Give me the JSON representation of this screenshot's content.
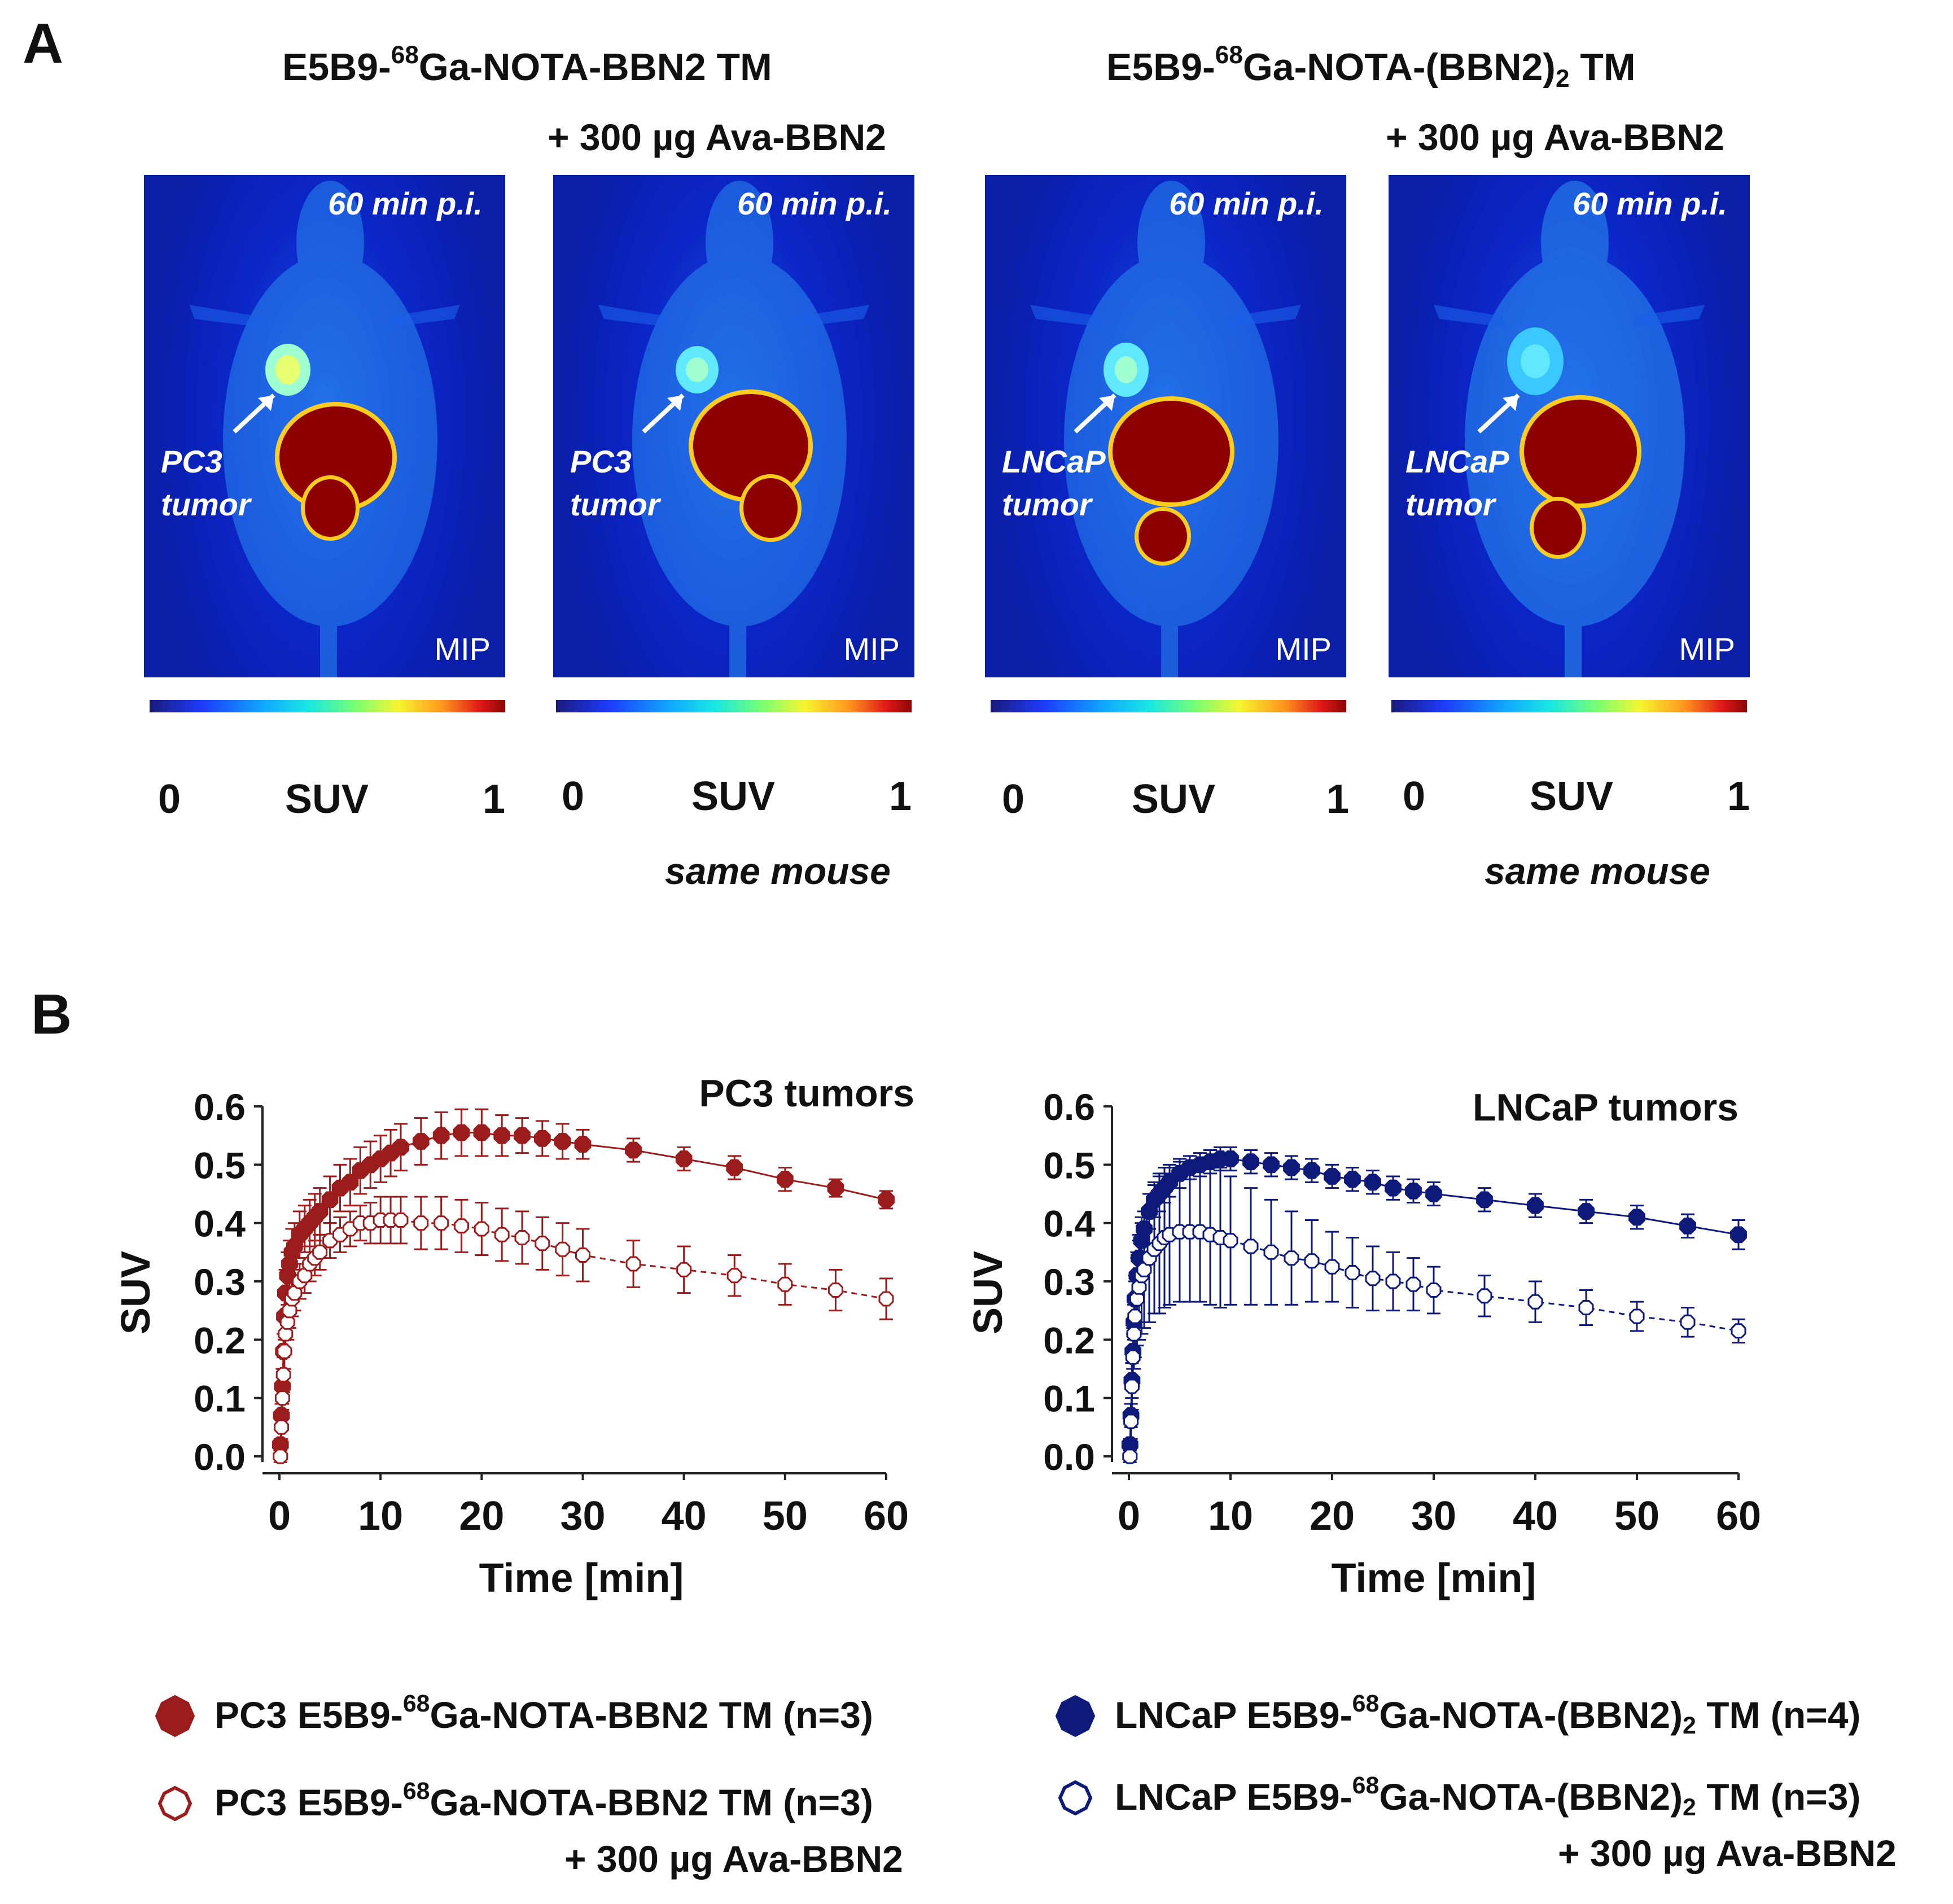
{
  "panel_a": {
    "label": "A",
    "groups": [
      {
        "title_pre": "E5B9-",
        "title_sup": "68",
        "title_post": "Ga-NOTA-BBN2 TM",
        "title_sub": "",
        "title_end": "",
        "block_sub": "+ 300 µg Ava-BBN2"
      },
      {
        "title_pre": "E5B9-",
        "title_sup": "68",
        "title_post": "Ga-NOTA-(BBN2)",
        "title_sub": "2",
        "title_end": " TM",
        "block_sub": "+ 300 µg Ava-BBN2"
      }
    ],
    "images": [
      {
        "time": "60 min p.i.",
        "tumor_line1": "PC3",
        "tumor_line2": "tumor",
        "mip": "MIP",
        "scale_min": "0",
        "scale_label": "SUV",
        "scale_max": "1"
      },
      {
        "time": "60 min p.i.",
        "tumor_line1": "PC3",
        "tumor_line2": "tumor",
        "mip": "MIP",
        "scale_min": "0",
        "scale_label": "SUV",
        "scale_max": "1"
      },
      {
        "time": "60 min p.i.",
        "tumor_line1": "LNCaP",
        "tumor_line2": "tumor",
        "mip": "MIP",
        "scale_min": "0",
        "scale_label": "SUV",
        "scale_max": "1"
      },
      {
        "time": "60 min p.i.",
        "tumor_line1": "LNCaP",
        "tumor_line2": "tumor",
        "mip": "MIP",
        "scale_min": "0",
        "scale_label": "SUV",
        "scale_max": "1"
      }
    ],
    "same_mouse": "same mouse"
  },
  "panel_b": {
    "label": "B",
    "legend": {
      "pc3_blocked_sub": "+ 300 µg Ava-BBN2",
      "lncap_blocked_sub": "+ 300 µg Ava-BBN2",
      "pc3_pre": "PC3 E5B9-",
      "sup": "68",
      "pc3_solid_post": "Ga-NOTA-BBN2 TM (n=3)",
      "pc3_open_post": "Ga-NOTA-BBN2 TM (n=3)",
      "lncap_pre": "LNCaP E5B9-",
      "lncap_mid": "Ga-NOTA-(BBN2)",
      "sub2": "2",
      "lncap_solid_end": " TM (n=4)",
      "lncap_open_end": " TM (n=3)"
    }
  },
  "colors": {
    "pc3": "#9b1c1c",
    "lncap": "#0e1a7a"
  },
  "chart_data": [
    {
      "type": "line",
      "title": "PC3 tumors",
      "xlabel": "Time [min]",
      "ylabel": "SUV",
      "xlim": [
        0,
        60
      ],
      "ylim": [
        0.0,
        0.6
      ],
      "xticks": [
        0,
        10,
        20,
        30,
        40,
        50,
        60
      ],
      "yticks": [
        "0.0",
        "0.1",
        "0.2",
        "0.3",
        "0.4",
        "0.5",
        "0.6"
      ],
      "series": [
        {
          "name": "PC3 E5B9-68Ga-NOTA-BBN2 TM (n=3)",
          "marker": "filled",
          "color": "#9b1c1c",
          "x": [
            0.1,
            0.2,
            0.3,
            0.4,
            0.5,
            0.6,
            0.8,
            1.0,
            1.25,
            1.5,
            2,
            2.5,
            3,
            3.5,
            4,
            5,
            6,
            7,
            8,
            9,
            10,
            11,
            12,
            14,
            16,
            18,
            20,
            22,
            24,
            26,
            28,
            30,
            35,
            40,
            45,
            50,
            55,
            60
          ],
          "y": [
            0.02,
            0.07,
            0.12,
            0.18,
            0.24,
            0.28,
            0.31,
            0.33,
            0.35,
            0.36,
            0.38,
            0.39,
            0.4,
            0.41,
            0.42,
            0.44,
            0.46,
            0.47,
            0.49,
            0.5,
            0.51,
            0.52,
            0.53,
            0.54,
            0.55,
            0.555,
            0.555,
            0.55,
            0.55,
            0.545,
            0.54,
            0.535,
            0.525,
            0.51,
            0.495,
            0.475,
            0.46,
            0.44
          ],
          "err": [
            0.01,
            0.02,
            0.03,
            0.03,
            0.04,
            0.04,
            0.04,
            0.04,
            0.04,
            0.04,
            0.04,
            0.04,
            0.04,
            0.04,
            0.04,
            0.04,
            0.04,
            0.04,
            0.04,
            0.04,
            0.04,
            0.04,
            0.04,
            0.04,
            0.04,
            0.04,
            0.04,
            0.035,
            0.03,
            0.03,
            0.03,
            0.025,
            0.02,
            0.02,
            0.02,
            0.02,
            0.015,
            0.015
          ]
        },
        {
          "name": "PC3 E5B9-68Ga-NOTA-BBN2 TM (n=3) + 300 µg Ava-BBN2",
          "marker": "open",
          "color": "#9b1c1c",
          "x": [
            0.1,
            0.2,
            0.3,
            0.4,
            0.5,
            0.6,
            0.8,
            1.0,
            1.25,
            1.5,
            2,
            2.5,
            3,
            3.5,
            4,
            5,
            6,
            7,
            8,
            9,
            10,
            11,
            12,
            14,
            16,
            18,
            20,
            22,
            24,
            26,
            28,
            30,
            35,
            40,
            45,
            50,
            55,
            60
          ],
          "y": [
            0.0,
            0.05,
            0.1,
            0.14,
            0.18,
            0.21,
            0.23,
            0.25,
            0.27,
            0.28,
            0.3,
            0.31,
            0.33,
            0.34,
            0.35,
            0.37,
            0.38,
            0.39,
            0.4,
            0.4,
            0.405,
            0.405,
            0.405,
            0.4,
            0.4,
            0.395,
            0.39,
            0.38,
            0.375,
            0.365,
            0.355,
            0.345,
            0.33,
            0.32,
            0.31,
            0.295,
            0.285,
            0.27
          ],
          "err": [
            0.01,
            0.02,
            0.02,
            0.03,
            0.03,
            0.03,
            0.03,
            0.03,
            0.03,
            0.03,
            0.03,
            0.03,
            0.03,
            0.03,
            0.03,
            0.03,
            0.03,
            0.03,
            0.03,
            0.035,
            0.04,
            0.04,
            0.04,
            0.045,
            0.045,
            0.045,
            0.045,
            0.045,
            0.045,
            0.045,
            0.045,
            0.045,
            0.04,
            0.04,
            0.035,
            0.035,
            0.035,
            0.035
          ]
        }
      ]
    },
    {
      "type": "line",
      "title": "LNCaP tumors",
      "xlabel": "Time [min]",
      "ylabel": "SUV",
      "xlim": [
        0,
        60
      ],
      "ylim": [
        0.0,
        0.6
      ],
      "xticks": [
        0,
        10,
        20,
        30,
        40,
        50,
        60
      ],
      "yticks": [
        "0.0",
        "0.1",
        "0.2",
        "0.3",
        "0.4",
        "0.5",
        "0.6"
      ],
      "series": [
        {
          "name": "LNCaP E5B9-68Ga-NOTA-(BBN2)2 TM (n=4)",
          "marker": "filled",
          "color": "#0e1a7a",
          "x": [
            0.1,
            0.2,
            0.3,
            0.4,
            0.5,
            0.6,
            0.8,
            1.0,
            1.25,
            1.5,
            2,
            2.5,
            3,
            3.5,
            4,
            5,
            6,
            7,
            8,
            9,
            10,
            12,
            14,
            16,
            18,
            20,
            22,
            24,
            26,
            28,
            30,
            35,
            40,
            45,
            50,
            55,
            60
          ],
          "y": [
            0.02,
            0.07,
            0.13,
            0.18,
            0.23,
            0.27,
            0.31,
            0.34,
            0.37,
            0.39,
            0.42,
            0.44,
            0.45,
            0.46,
            0.47,
            0.485,
            0.495,
            0.5,
            0.505,
            0.51,
            0.51,
            0.505,
            0.5,
            0.495,
            0.49,
            0.48,
            0.475,
            0.47,
            0.46,
            0.455,
            0.45,
            0.44,
            0.43,
            0.42,
            0.41,
            0.395,
            0.38
          ],
          "err": [
            0.01,
            0.02,
            0.03,
            0.03,
            0.03,
            0.03,
            0.03,
            0.03,
            0.03,
            0.03,
            0.03,
            0.03,
            0.03,
            0.025,
            0.025,
            0.025,
            0.02,
            0.02,
            0.02,
            0.02,
            0.02,
            0.02,
            0.02,
            0.02,
            0.02,
            0.02,
            0.02,
            0.02,
            0.02,
            0.02,
            0.02,
            0.02,
            0.02,
            0.02,
            0.02,
            0.02,
            0.025
          ]
        },
        {
          "name": "LNCaP E5B9-68Ga-NOTA-(BBN2)2 TM (n=3) + 300 µg Ava-BBN2",
          "marker": "open",
          "color": "#0e1a7a",
          "x": [
            0.1,
            0.2,
            0.3,
            0.4,
            0.5,
            0.6,
            0.8,
            1.0,
            1.25,
            1.5,
            2,
            2.5,
            3,
            3.5,
            4,
            5,
            6,
            7,
            8,
            9,
            10,
            12,
            14,
            16,
            18,
            20,
            22,
            24,
            26,
            28,
            30,
            35,
            40,
            45,
            50,
            55,
            60
          ],
          "y": [
            0.0,
            0.06,
            0.12,
            0.17,
            0.21,
            0.24,
            0.27,
            0.29,
            0.31,
            0.32,
            0.34,
            0.355,
            0.365,
            0.375,
            0.38,
            0.385,
            0.385,
            0.385,
            0.38,
            0.375,
            0.37,
            0.36,
            0.35,
            0.34,
            0.335,
            0.325,
            0.315,
            0.305,
            0.3,
            0.295,
            0.285,
            0.275,
            0.265,
            0.255,
            0.24,
            0.23,
            0.215
          ],
          "err": [
            0.01,
            0.03,
            0.04,
            0.05,
            0.06,
            0.07,
            0.08,
            0.09,
            0.1,
            0.1,
            0.11,
            0.11,
            0.12,
            0.12,
            0.12,
            0.12,
            0.12,
            0.12,
            0.12,
            0.12,
            0.11,
            0.1,
            0.09,
            0.08,
            0.07,
            0.06,
            0.06,
            0.055,
            0.05,
            0.045,
            0.04,
            0.035,
            0.035,
            0.03,
            0.025,
            0.025,
            0.02
          ]
        }
      ]
    }
  ]
}
